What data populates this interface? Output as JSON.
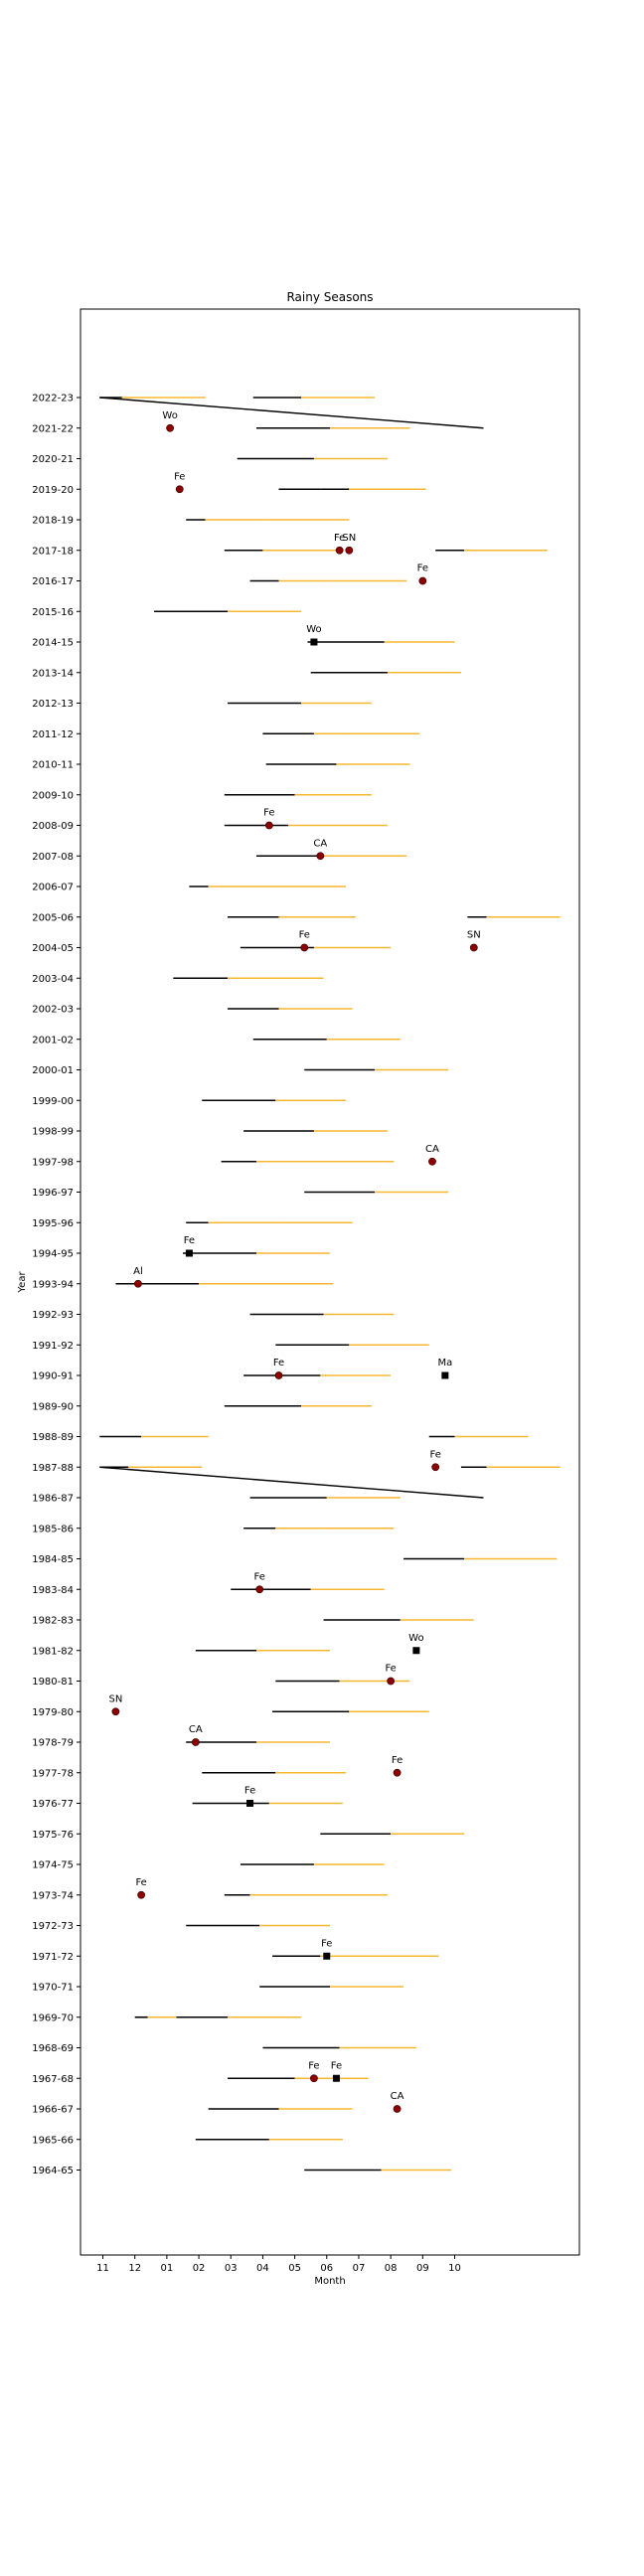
{
  "chart_data": {
    "type": "range-timeline",
    "title": "Rainy Seasons",
    "xlabel": "Month",
    "ylabel": "Year",
    "x_ticks": [
      "11",
      "12",
      "01",
      "02",
      "03",
      "04",
      "05",
      "06",
      "07",
      "08",
      "09",
      "10"
    ],
    "x_range_months_from_nov": [
      -0.7,
      14.9
    ],
    "grid": false,
    "colors": {
      "segment_a": "#000000",
      "segment_b": "#f5b731",
      "marker_circle": "#8b0000",
      "marker_square": "#000000"
    },
    "rows": [
      {
        "year": "2022-23",
        "segments": [
          [
            -0.1,
            0.6,
            "k"
          ],
          [
            0.6,
            3.2,
            "o"
          ],
          [
            4.7,
            6.2,
            "k"
          ],
          [
            6.2,
            8.5,
            "o"
          ]
        ],
        "trend": [
          -0.1,
          11.9
        ]
      },
      {
        "year": "2021-22",
        "segments": [
          [
            4.8,
            7.1,
            "k"
          ],
          [
            7.1,
            9.6,
            "o"
          ]
        ],
        "markers": [
          [
            2.1,
            "c",
            "Wo"
          ]
        ]
      },
      {
        "year": "2020-21",
        "segments": [
          [
            4.2,
            6.6,
            "k"
          ],
          [
            6.6,
            8.9,
            "o"
          ]
        ]
      },
      {
        "year": "2019-20",
        "segments": [
          [
            5.5,
            6.8,
            "k"
          ],
          [
            6.8,
            7.7,
            "k"
          ],
          [
            7.7,
            10.1,
            "o"
          ]
        ],
        "markers": [
          [
            2.4,
            "c",
            "Fe"
          ]
        ]
      },
      {
        "year": "2018-19",
        "segments": [
          [
            2.6,
            3.2,
            "k"
          ],
          [
            3.2,
            5.2,
            "o"
          ],
          [
            5.2,
            7.7,
            "o"
          ]
        ]
      },
      {
        "year": "2017-18",
        "segments": [
          [
            3.8,
            5.0,
            "k"
          ],
          [
            5.0,
            7.5,
            "o"
          ],
          [
            10.4,
            11.3,
            "k"
          ],
          [
            11.3,
            13.9,
            "o"
          ]
        ],
        "markers": [
          [
            7.4,
            "c",
            "Fe"
          ],
          [
            7.7,
            "c",
            "SN"
          ]
        ]
      },
      {
        "year": "2016-17",
        "segments": [
          [
            4.6,
            5.5,
            "k"
          ],
          [
            5.5,
            7.0,
            "o"
          ],
          [
            7.0,
            9.5,
            "o"
          ]
        ],
        "markers": [
          [
            10.0,
            "c",
            "Fe"
          ]
        ]
      },
      {
        "year": "2015-16",
        "segments": [
          [
            1.6,
            3.9,
            "k"
          ],
          [
            3.9,
            6.2,
            "o"
          ]
        ]
      },
      {
        "year": "2014-15",
        "segments": [
          [
            6.4,
            8.8,
            "k"
          ],
          [
            8.8,
            11.0,
            "o"
          ]
        ],
        "markers": [
          [
            6.6,
            "s",
            "Wo"
          ]
        ]
      },
      {
        "year": "2013-14",
        "segments": [
          [
            6.5,
            8.9,
            "k"
          ],
          [
            8.9,
            11.2,
            "o"
          ]
        ]
      },
      {
        "year": "2012-13",
        "segments": [
          [
            3.9,
            6.2,
            "k"
          ],
          [
            6.2,
            8.4,
            "o"
          ]
        ]
      },
      {
        "year": "2011-12",
        "segments": [
          [
            5.0,
            6.6,
            "k"
          ],
          [
            6.6,
            7.5,
            "o"
          ],
          [
            7.5,
            9.9,
            "o"
          ]
        ]
      },
      {
        "year": "2010-11",
        "segments": [
          [
            5.1,
            7.3,
            "k"
          ],
          [
            7.3,
            9.6,
            "o"
          ]
        ]
      },
      {
        "year": "2009-10",
        "segments": [
          [
            3.8,
            6.0,
            "k"
          ],
          [
            6.0,
            8.4,
            "o"
          ]
        ]
      },
      {
        "year": "2008-09",
        "segments": [
          [
            3.8,
            5.8,
            "k"
          ],
          [
            5.8,
            8.9,
            "o"
          ]
        ],
        "markers": [
          [
            5.2,
            "c",
            "Fe"
          ]
        ]
      },
      {
        "year": "2007-08",
        "segments": [
          [
            4.8,
            6.9,
            "k"
          ],
          [
            6.9,
            9.5,
            "o"
          ]
        ],
        "markers": [
          [
            6.8,
            "c",
            "CA"
          ]
        ]
      },
      {
        "year": "2006-07",
        "segments": [
          [
            2.7,
            3.3,
            "k"
          ],
          [
            3.3,
            7.6,
            "o"
          ]
        ]
      },
      {
        "year": "2005-06",
        "segments": [
          [
            3.9,
            5.5,
            "k"
          ],
          [
            5.5,
            7.9,
            "o"
          ],
          [
            11.4,
            12.0,
            "k"
          ],
          [
            12.0,
            14.3,
            "o"
          ]
        ]
      },
      {
        "year": "2004-05",
        "segments": [
          [
            4.3,
            6.6,
            "k"
          ],
          [
            6.6,
            9.0,
            "o"
          ]
        ],
        "markers": [
          [
            6.3,
            "c",
            "Fe"
          ],
          [
            11.6,
            "c",
            "SN"
          ]
        ]
      },
      {
        "year": "2003-04",
        "segments": [
          [
            2.2,
            3.9,
            "k"
          ],
          [
            3.9,
            6.9,
            "o"
          ]
        ]
      },
      {
        "year": "2002-03",
        "segments": [
          [
            3.9,
            5.5,
            "k"
          ],
          [
            5.5,
            7.8,
            "o"
          ]
        ]
      },
      {
        "year": "2001-02",
        "segments": [
          [
            4.7,
            7.0,
            "k"
          ],
          [
            7.0,
            9.3,
            "o"
          ]
        ]
      },
      {
        "year": "2000-01",
        "segments": [
          [
            6.3,
            8.5,
            "k"
          ],
          [
            8.5,
            10.8,
            "o"
          ]
        ]
      },
      {
        "year": "1999-00",
        "segments": [
          [
            3.1,
            5.4,
            "k"
          ],
          [
            5.4,
            7.6,
            "o"
          ]
        ]
      },
      {
        "year": "1998-99",
        "segments": [
          [
            4.4,
            6.6,
            "k"
          ],
          [
            6.6,
            8.9,
            "o"
          ]
        ]
      },
      {
        "year": "1997-98",
        "segments": [
          [
            3.7,
            4.8,
            "k"
          ],
          [
            4.8,
            9.1,
            "o"
          ]
        ],
        "markers": [
          [
            10.3,
            "c",
            "CA"
          ]
        ]
      },
      {
        "year": "1996-97",
        "segments": [
          [
            6.3,
            8.5,
            "k"
          ],
          [
            8.5,
            10.8,
            "o"
          ]
        ]
      },
      {
        "year": "1995-96",
        "segments": [
          [
            2.6,
            3.3,
            "k"
          ],
          [
            3.3,
            5.5,
            "o"
          ],
          [
            5.5,
            7.8,
            "o"
          ]
        ]
      },
      {
        "year": "1994-95",
        "segments": [
          [
            2.5,
            4.8,
            "k"
          ],
          [
            4.8,
            7.1,
            "o"
          ]
        ],
        "markers": [
          [
            2.7,
            "s",
            "Fe"
          ]
        ]
      },
      {
        "year": "1993-94",
        "segments": [
          [
            0.4,
            3.0,
            "k"
          ],
          [
            3.0,
            7.2,
            "o"
          ]
        ],
        "markers": [
          [
            1.1,
            "c",
            "Al"
          ]
        ]
      },
      {
        "year": "1992-93",
        "segments": [
          [
            4.6,
            6.9,
            "k"
          ],
          [
            6.9,
            9.1,
            "o"
          ]
        ]
      },
      {
        "year": "1991-92",
        "segments": [
          [
            5.4,
            7.7,
            "k"
          ],
          [
            7.7,
            10.2,
            "o"
          ]
        ]
      },
      {
        "year": "1990-91",
        "segments": [
          [
            4.4,
            6.8,
            "k"
          ],
          [
            6.8,
            9.0,
            "o"
          ]
        ],
        "markers": [
          [
            5.5,
            "c",
            "Fe"
          ],
          [
            10.7,
            "s",
            "Ma"
          ]
        ]
      },
      {
        "year": "1989-90",
        "segments": [
          [
            3.8,
            6.2,
            "k"
          ],
          [
            6.2,
            8.4,
            "o"
          ]
        ]
      },
      {
        "year": "1988-89",
        "segments": [
          [
            -0.1,
            1.2,
            "k"
          ],
          [
            1.2,
            3.3,
            "o"
          ],
          [
            10.2,
            11.0,
            "k"
          ],
          [
            11.0,
            13.3,
            "o"
          ]
        ]
      },
      {
        "year": "1987-88",
        "segments": [
          [
            -0.1,
            0.8,
            "k"
          ],
          [
            0.8,
            3.1,
            "o"
          ],
          [
            11.2,
            12.0,
            "k"
          ],
          [
            12.0,
            14.3,
            "o"
          ]
        ],
        "markers": [
          [
            10.4,
            "c",
            "Fe"
          ]
        ],
        "trend": [
          -0.1,
          11.9
        ]
      },
      {
        "year": "1986-87",
        "segments": [
          [
            4.6,
            7.0,
            "k"
          ],
          [
            7.0,
            9.3,
            "o"
          ]
        ]
      },
      {
        "year": "1985-86",
        "segments": [
          [
            4.4,
            5.4,
            "k"
          ],
          [
            5.4,
            6.8,
            "o"
          ],
          [
            6.8,
            9.1,
            "o"
          ]
        ]
      },
      {
        "year": "1984-85",
        "segments": [
          [
            9.4,
            11.3,
            "k"
          ],
          [
            11.3,
            14.2,
            "o"
          ]
        ]
      },
      {
        "year": "1983-84",
        "segments": [
          [
            4.0,
            6.5,
            "k"
          ],
          [
            6.5,
            8.8,
            "o"
          ]
        ],
        "markers": [
          [
            4.9,
            "c",
            "Fe"
          ]
        ]
      },
      {
        "year": "1982-83",
        "segments": [
          [
            6.9,
            9.3,
            "k"
          ],
          [
            9.3,
            11.6,
            "o"
          ]
        ]
      },
      {
        "year": "1981-82",
        "segments": [
          [
            2.9,
            4.8,
            "k"
          ],
          [
            4.8,
            7.1,
            "o"
          ]
        ],
        "markers": [
          [
            9.8,
            "s",
            "Wo"
          ]
        ]
      },
      {
        "year": "1980-81",
        "segments": [
          [
            5.4,
            7.4,
            "k"
          ],
          [
            7.4,
            9.6,
            "o"
          ]
        ],
        "markers": [
          [
            9.0,
            "c",
            "Fe"
          ]
        ]
      },
      {
        "year": "1979-80",
        "segments": [
          [
            5.3,
            7.7,
            "k"
          ],
          [
            7.7,
            10.2,
            "o"
          ]
        ],
        "markers": [
          [
            0.4,
            "c",
            "SN"
          ]
        ]
      },
      {
        "year": "1978-79",
        "segments": [
          [
            2.6,
            4.8,
            "k"
          ],
          [
            4.8,
            7.1,
            "o"
          ]
        ],
        "markers": [
          [
            2.9,
            "c",
            "CA"
          ]
        ]
      },
      {
        "year": "1977-78",
        "segments": [
          [
            3.1,
            5.4,
            "k"
          ],
          [
            5.4,
            7.6,
            "o"
          ]
        ],
        "markers": [
          [
            9.2,
            "c",
            "Fe"
          ]
        ]
      },
      {
        "year": "1976-77",
        "segments": [
          [
            2.8,
            5.2,
            "k"
          ],
          [
            5.2,
            7.5,
            "o"
          ]
        ],
        "markers": [
          [
            4.6,
            "s",
            "Fe"
          ]
        ]
      },
      {
        "year": "1975-76",
        "segments": [
          [
            6.8,
            9.0,
            "k"
          ],
          [
            9.0,
            11.3,
            "o"
          ]
        ]
      },
      {
        "year": "1974-75",
        "segments": [
          [
            4.3,
            6.6,
            "k"
          ],
          [
            6.6,
            8.8,
            "o"
          ]
        ]
      },
      {
        "year": "1973-74",
        "segments": [
          [
            3.8,
            4.6,
            "k"
          ],
          [
            4.6,
            6.6,
            "o"
          ],
          [
            6.6,
            8.9,
            "o"
          ]
        ],
        "markers": [
          [
            1.2,
            "c",
            "Fe"
          ]
        ]
      },
      {
        "year": "1972-73",
        "segments": [
          [
            2.6,
            4.9,
            "k"
          ],
          [
            4.9,
            7.1,
            "o"
          ]
        ]
      },
      {
        "year": "1971-72",
        "segments": [
          [
            5.3,
            6.8,
            "k"
          ],
          [
            6.8,
            8.3,
            "o"
          ],
          [
            8.3,
            10.5,
            "o"
          ]
        ],
        "markers": [
          [
            7.0,
            "s",
            "Fe"
          ]
        ]
      },
      {
        "year": "1970-71",
        "segments": [
          [
            4.9,
            7.1,
            "k"
          ],
          [
            7.1,
            9.4,
            "o"
          ]
        ]
      },
      {
        "year": "1969-70",
        "segments": [
          [
            1.0,
            1.4,
            "k"
          ],
          [
            1.4,
            2.3,
            "o"
          ],
          [
            2.3,
            3.9,
            "k"
          ],
          [
            3.9,
            6.2,
            "o"
          ]
        ]
      },
      {
        "year": "1968-69",
        "segments": [
          [
            5.0,
            7.4,
            "k"
          ],
          [
            7.4,
            9.8,
            "o"
          ]
        ]
      },
      {
        "year": "1967-68",
        "segments": [
          [
            3.9,
            6.0,
            "k"
          ],
          [
            6.0,
            8.3,
            "o"
          ]
        ],
        "markers": [
          [
            6.6,
            "c",
            "Fe"
          ],
          [
            7.3,
            "s",
            "Fe"
          ]
        ]
      },
      {
        "year": "1966-67",
        "segments": [
          [
            3.3,
            5.5,
            "k"
          ],
          [
            5.5,
            7.8,
            "o"
          ]
        ],
        "markers": [
          [
            9.2,
            "c",
            "CA"
          ]
        ]
      },
      {
        "year": "1965-66",
        "segments": [
          [
            2.9,
            5.2,
            "k"
          ],
          [
            5.2,
            7.5,
            "o"
          ]
        ]
      },
      {
        "year": "1964-65",
        "segments": [
          [
            6.3,
            8.7,
            "k"
          ],
          [
            8.7,
            10.9,
            "o"
          ]
        ]
      }
    ]
  }
}
